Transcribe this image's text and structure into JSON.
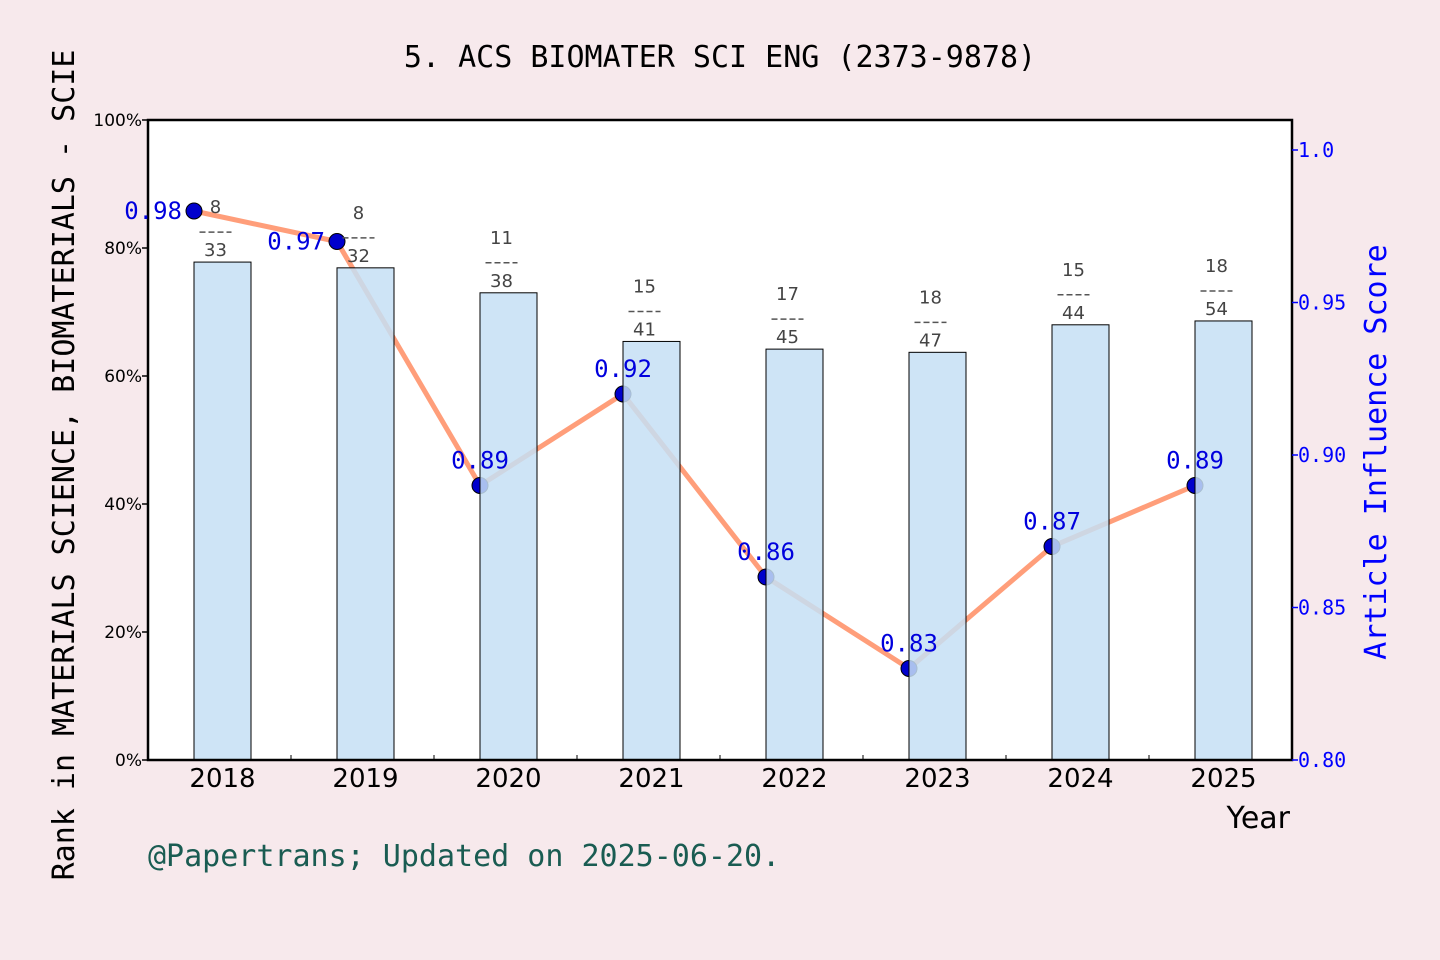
{
  "chart_data": {
    "type": "bar+line",
    "title": "5. ACS BIOMATER SCI ENG (2373-9878)",
    "xlabel": "Year",
    "ylabel_left": "Rank in MATERIALS SCIENCE, BIOMATERIALS - SCIE",
    "ylabel_right": "Article Influence Score",
    "categories": [
      "2018",
      "2019",
      "2020",
      "2021",
      "2022",
      "2023",
      "2024",
      "2025"
    ],
    "left_axis": {
      "ylim": [
        0,
        100
      ],
      "ticks": [
        "0%",
        "20%",
        "40%",
        "60%",
        "80%",
        "100%"
      ]
    },
    "right_axis": {
      "ylim": [
        0.8,
        1.01
      ],
      "ticks": [
        "0.80",
        "0.85",
        "0.90",
        "0.95",
        "1.0"
      ]
    },
    "bars": {
      "values_percent": [
        77.8,
        76.9,
        73.0,
        65.4,
        64.2,
        63.7,
        68.0,
        68.6
      ],
      "rank": [
        "8",
        "8",
        "11",
        "15",
        "17",
        "18",
        "15",
        "18"
      ],
      "total": [
        "33",
        "32",
        "38",
        "41",
        "45",
        "47",
        "44",
        "54"
      ],
      "color": "#c5dff5"
    },
    "line": {
      "values": [
        0.98,
        0.97,
        0.89,
        0.92,
        0.86,
        0.83,
        0.87,
        0.89
      ],
      "labels": [
        "0.98",
        "0.97",
        "0.89",
        "0.92",
        "0.86",
        "0.83",
        "0.87",
        "0.89"
      ],
      "line_color": "#ff9e7a",
      "marker_color": "#0000cc"
    },
    "grid": false,
    "legend": "none"
  },
  "footer": "@Papertrans; Updated on 2025-06-20."
}
